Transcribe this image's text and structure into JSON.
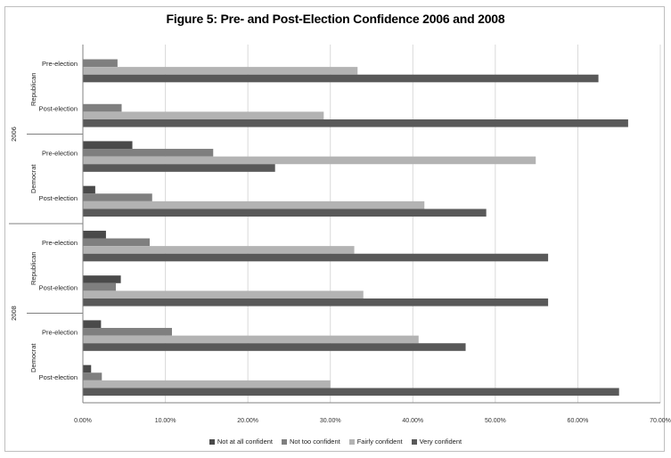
{
  "chart_data": {
    "type": "bar",
    "orientation": "horizontal",
    "title": "Figure 5:  Pre- and Post-Election Confidence 2006 and 2008",
    "groups": [
      {
        "year": "2006",
        "subgroups": [
          {
            "party": "Republican",
            "categories": [
              "Pre-election",
              "Post-election"
            ]
          },
          {
            "party": "Democrat",
            "categories": [
              "Pre-election",
              "Post-election"
            ]
          }
        ]
      },
      {
        "year": "2008",
        "subgroups": [
          {
            "party": "Republican",
            "categories": [
              "Pre-election",
              "Post-election"
            ]
          },
          {
            "party": "Democrat",
            "categories": [
              "Pre-election",
              "Post-election"
            ]
          }
        ]
      }
    ],
    "series": [
      {
        "name": "Not at all confident",
        "color": "#4a4a4a",
        "values": [
          0.0,
          0.0,
          6.0,
          1.5,
          2.8,
          4.6,
          2.2,
          1.0
        ]
      },
      {
        "name": "Not too confident",
        "color": "#7f7f7f",
        "values": [
          4.2,
          4.7,
          15.8,
          8.4,
          8.1,
          4.0,
          10.8,
          2.3
        ]
      },
      {
        "name": "Fairly confident",
        "color": "#b3b3b3",
        "values": [
          33.3,
          29.2,
          54.9,
          41.4,
          32.9,
          34.0,
          40.7,
          30.0
        ]
      },
      {
        "name": "Very confident",
        "color": "#595959",
        "values": [
          62.5,
          66.1,
          23.3,
          48.9,
          56.4,
          56.4,
          46.4,
          65.0
        ]
      }
    ],
    "xlim": [
      0,
      70
    ],
    "xticks": [
      "0.00%",
      "10.00%",
      "20.00%",
      "30.00%",
      "40.00%",
      "50.00%",
      "60.00%",
      "70.00%"
    ],
    "grid": true,
    "legend_position": "bottom"
  }
}
